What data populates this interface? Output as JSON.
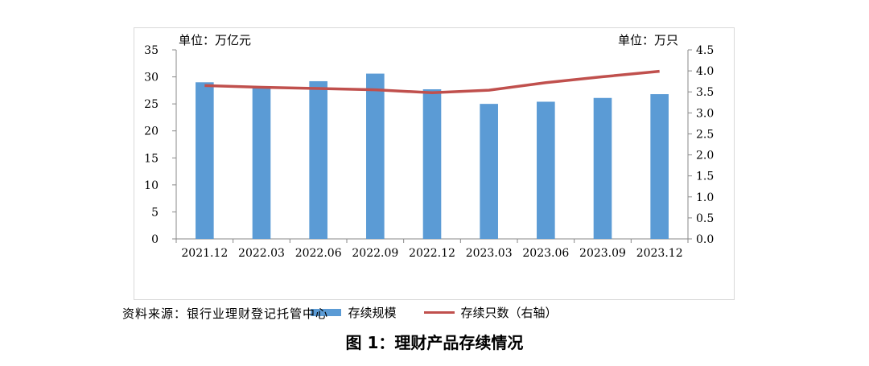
{
  "chart_data": {
    "type": "bar",
    "categories": [
      "2021.12",
      "2022.03",
      "2022.06",
      "2022.09",
      "2022.12",
      "2023.03",
      "2023.06",
      "2023.09",
      "2023.12"
    ],
    "series": [
      {
        "name": "存续规模",
        "type": "bar",
        "axis": "left",
        "color": "#5b9bd5",
        "values": [
          29.0,
          28.2,
          29.2,
          30.6,
          27.7,
          25.0,
          25.4,
          26.1,
          26.8
        ]
      },
      {
        "name": "存续只数（右轴）",
        "type": "line",
        "axis": "right",
        "color": "#c0504d",
        "values": [
          3.65,
          3.61,
          3.58,
          3.55,
          3.48,
          3.54,
          3.72,
          3.86,
          3.99
        ]
      }
    ],
    "left_axis": {
      "unit": "单位：万亿元",
      "ylim": [
        0,
        35
      ],
      "ticks": [
        "0",
        "5",
        "10",
        "15",
        "20",
        "25",
        "30",
        "35"
      ]
    },
    "right_axis": {
      "unit": "单位：万只",
      "ylim": [
        0,
        4.5
      ],
      "ticks": [
        "0.0",
        "0.5",
        "1.0",
        "1.5",
        "2.0",
        "2.5",
        "3.0",
        "3.5",
        "4.0",
        "4.5"
      ]
    },
    "grid": false,
    "legend": "bottom"
  },
  "source": "资料来源：银行业理财登记托管中心",
  "caption": "图 1：理财产品存续情况"
}
